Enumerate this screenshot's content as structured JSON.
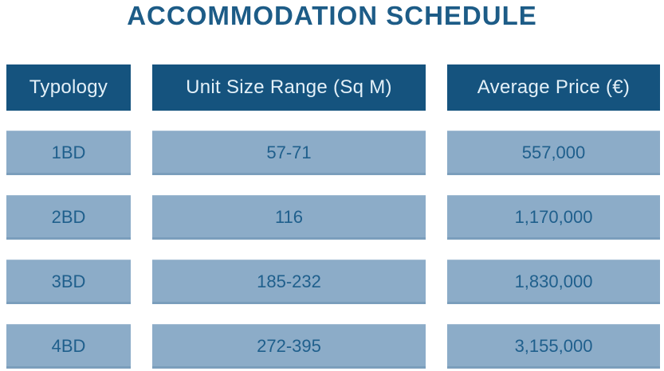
{
  "title": "ACCOMMODATION SCHEDULE",
  "colors": {
    "header_background": "#15537e",
    "header_text": "#e3f0f8",
    "cell_background": "#8cacc8",
    "cell_text": "#1f5f8c",
    "title_text": "#1d5c87",
    "page_background": "#ffffff"
  },
  "chart_data": {
    "type": "table",
    "title": "ACCOMMODATION SCHEDULE",
    "columns": [
      "Typology",
      "Unit Size Range (Sq M)",
      "Average Price (€)"
    ],
    "rows": [
      [
        "1BD",
        "57-71",
        "557,000"
      ],
      [
        "2BD",
        "116",
        "1,170,000"
      ],
      [
        "3BD",
        "185-232",
        "1,830,000"
      ],
      [
        "4BD",
        "272-395",
        "3,155,000"
      ]
    ]
  }
}
